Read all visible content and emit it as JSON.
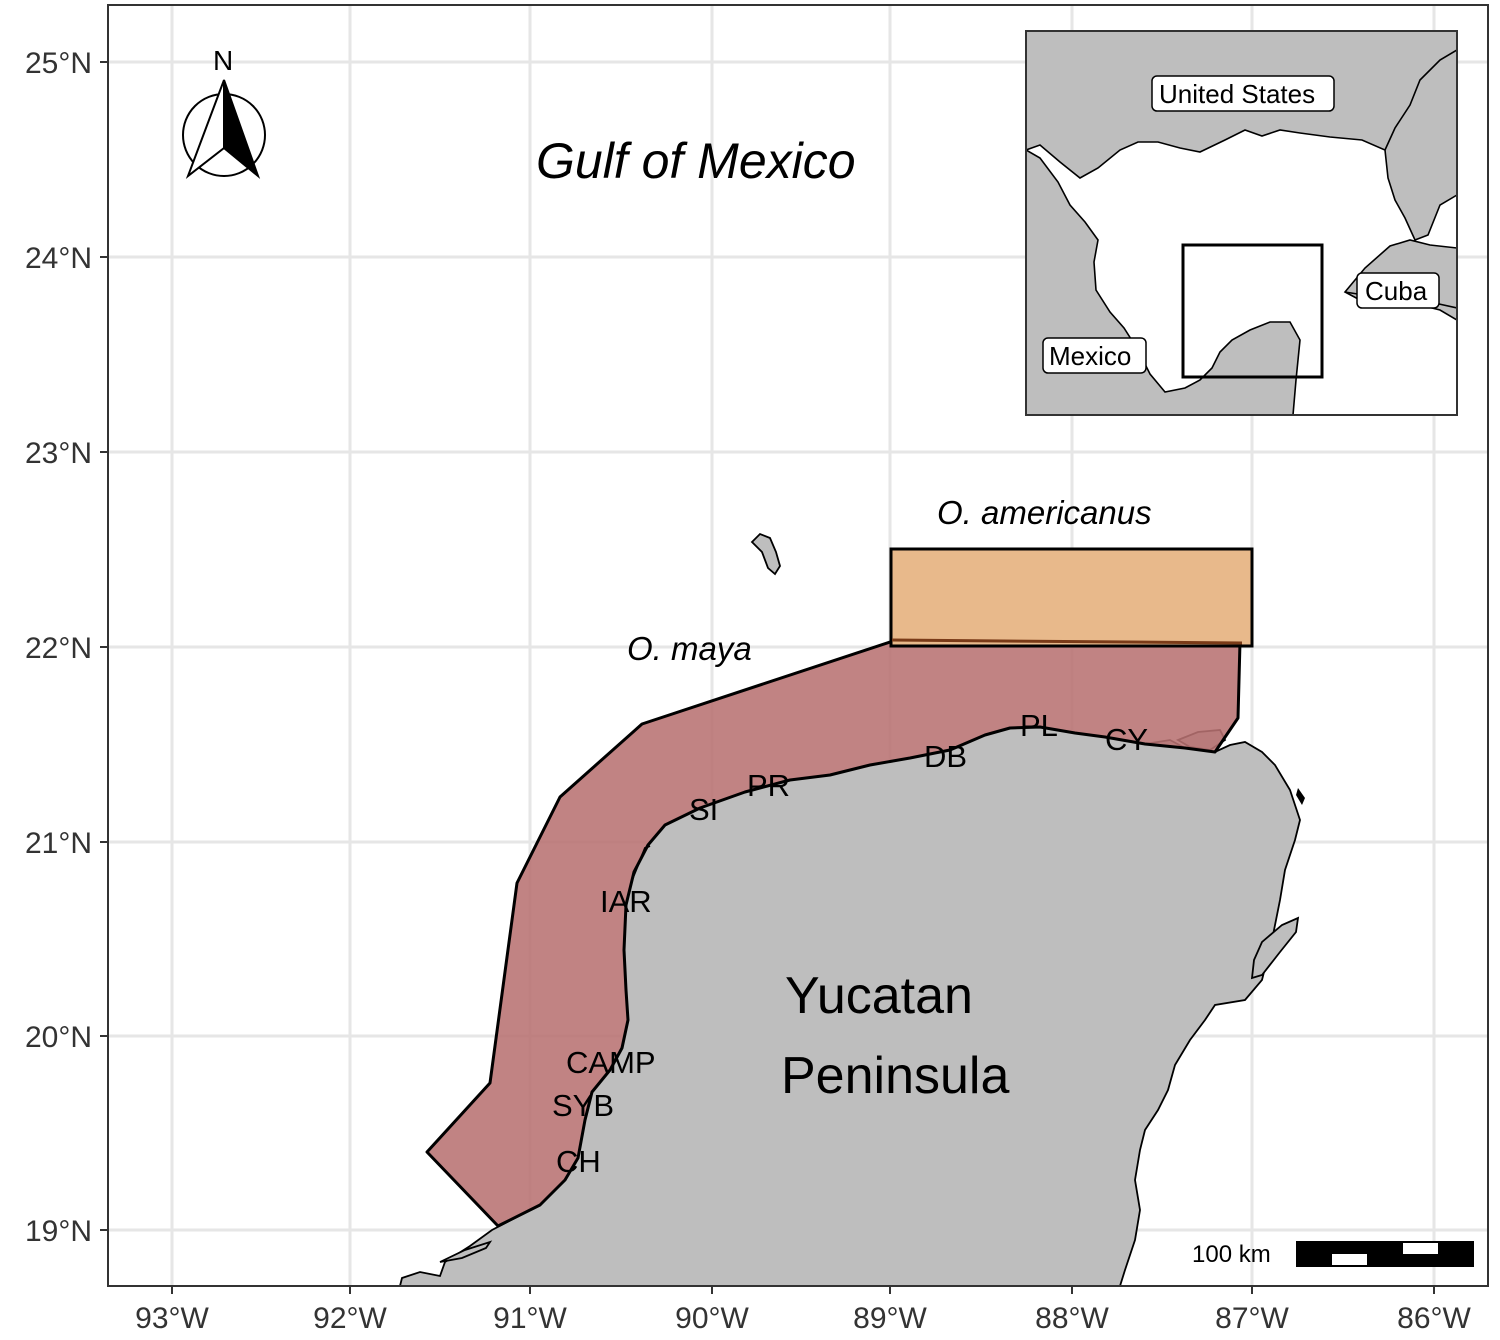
{
  "map": {
    "sea_label": "Gulf of Mexico",
    "region_label_line1": "Yucatan",
    "region_label_line2": "Peninsula",
    "north_arrow_label": "N",
    "scale_bar_label": "100 km",
    "colors": {
      "land": "#bebebe",
      "sea": "#ffffff",
      "grid": "#e6e6e6",
      "o_maya_area": "#b87272",
      "o_americanus_area": "#e8b98b"
    },
    "species_areas": [
      {
        "name": "O. maya",
        "color": "#b87272"
      },
      {
        "name": "O. americanus",
        "color": "#e8b98b"
      }
    ],
    "sites": [
      "PL",
      "CY",
      "DB",
      "PR",
      "SI",
      "IAR",
      "CAMP",
      "SYB",
      "CH"
    ],
    "y_axis_ticks": [
      "25°N",
      "24°N",
      "23°N",
      "22°N",
      "21°N",
      "20°N",
      "19°N"
    ],
    "x_axis_ticks": [
      "93°W",
      "92°W",
      "91°W",
      "90°W",
      "89°W",
      "88°W",
      "87°W",
      "86°W"
    ]
  },
  "inset": {
    "labels": [
      "United States",
      "Cuba",
      "Mexico"
    ]
  }
}
